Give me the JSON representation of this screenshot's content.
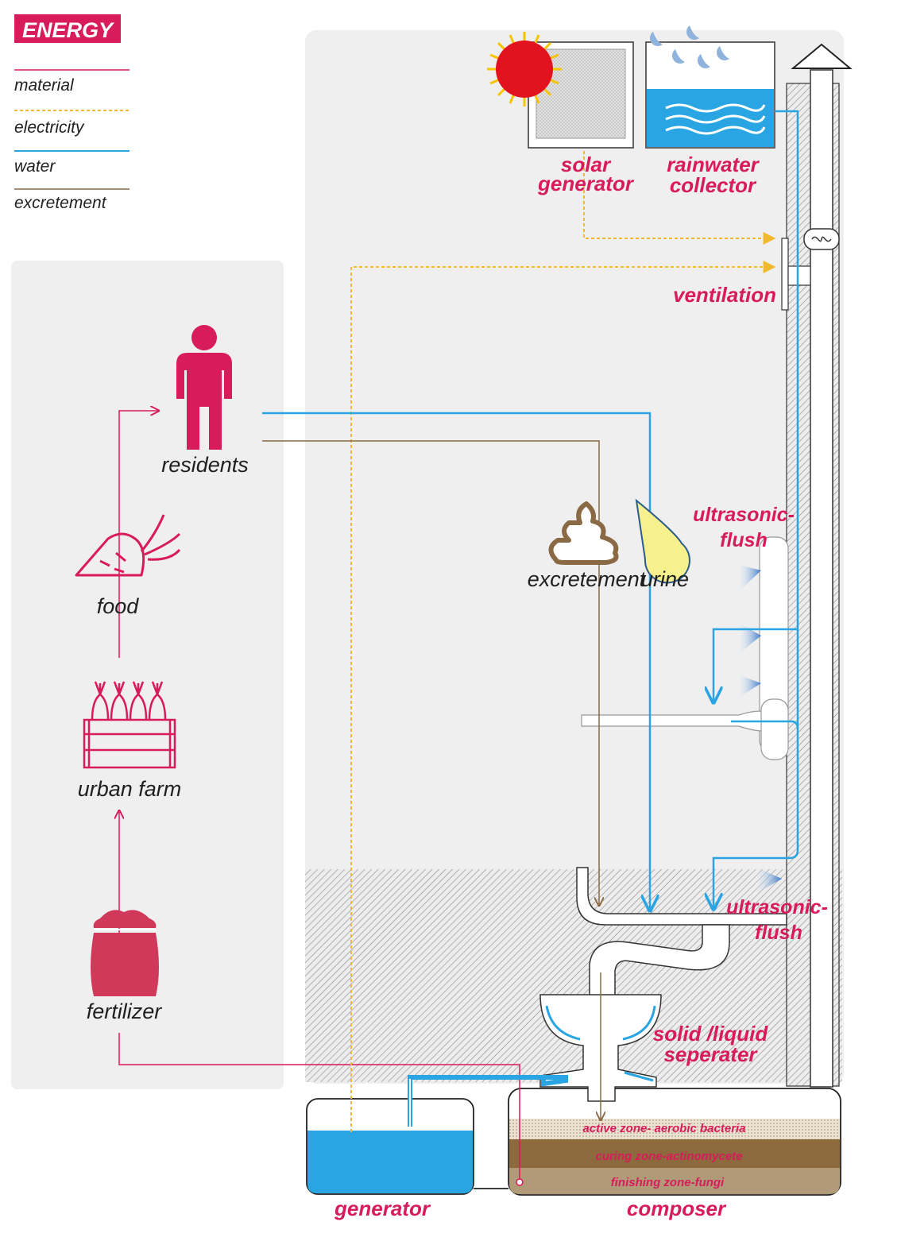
{
  "legend": {
    "title": "ENERGY",
    "items": [
      {
        "label": "material",
        "color": "#d81b5a",
        "style": "solid"
      },
      {
        "label": "electricity",
        "color": "#f2b830",
        "style": "dotted"
      },
      {
        "label": "water",
        "color": "#2aa5e3",
        "style": "solid"
      },
      {
        "label": "excretement",
        "color": "#8a6a45",
        "style": "solid"
      }
    ]
  },
  "labels": {
    "solar_line1": "solar",
    "solar_line2": "generator",
    "rain_line1": "rainwater",
    "rain_line2": "collector",
    "ventilation": "ventilation",
    "residents": "residents",
    "food": "food",
    "urban_farm": "urban farm",
    "fertilizer": "fertilizer",
    "excretement": "excretement",
    "urine": "urine",
    "flush1_line1": "ultrasonic-",
    "flush1_line2": "flush",
    "flush2_line1": "ultrasonic-",
    "flush2_line2": "flush",
    "separator_line1": "solid /liquid",
    "separator_line2": "seperater",
    "zone_active": "active zone- aerobic bacteria",
    "zone_curing": "curing zone-actinomycete",
    "zone_finishing": "finishing zone-fungi",
    "generator": "generator",
    "composer": "composer"
  },
  "colors": {
    "material": "#d81b5a",
    "electricity": "#f2b830",
    "water": "#2aa5e3",
    "excretement": "#8a6a45",
    "panel": "#efefef",
    "sun": "#e3121f",
    "sun_rays": "#f7c400"
  },
  "icons": [
    "sun-icon",
    "rain-drops-icon",
    "fan-icon",
    "person-icon",
    "carrot-icon",
    "crate-icon",
    "sack-icon",
    "poop-icon",
    "drop-icon",
    "chimney-cap-icon"
  ]
}
